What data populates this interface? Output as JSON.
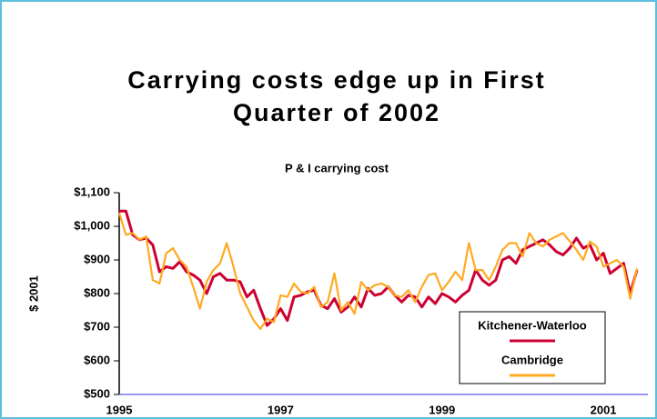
{
  "chart_data": {
    "type": "line",
    "title": "Carrying costs edge up in First Quarter of 2002",
    "subtitle": "P & I carrying cost",
    "y_label": "$ 2001",
    "categories": [
      "1995",
      null,
      null,
      null,
      null,
      null,
      null,
      null,
      null,
      null,
      null,
      null,
      null,
      null,
      null,
      null,
      null,
      null,
      null,
      null,
      null,
      null,
      null,
      null,
      "1997",
      null,
      null,
      null,
      null,
      null,
      null,
      null,
      null,
      null,
      null,
      null,
      null,
      null,
      null,
      null,
      null,
      null,
      null,
      null,
      null,
      null,
      null,
      null,
      "1999",
      null,
      null,
      null,
      null,
      null,
      null,
      null,
      null,
      null,
      null,
      null,
      null,
      null,
      null,
      null,
      null,
      null,
      null,
      null,
      null,
      null,
      null,
      null,
      "2001",
      null,
      null,
      null,
      null,
      null
    ],
    "series": [
      {
        "name": "Kitchener-Waterloo",
        "color": "#cc0033",
        "values": [
          1045,
          1045,
          975,
          960,
          965,
          945,
          865,
          880,
          875,
          895,
          865,
          855,
          840,
          800,
          850,
          860,
          840,
          840,
          835,
          790,
          810,
          755,
          705,
          725,
          755,
          720,
          790,
          795,
          805,
          810,
          765,
          755,
          785,
          745,
          760,
          790,
          760,
          815,
          795,
          800,
          820,
          795,
          775,
          795,
          790,
          760,
          790,
          770,
          800,
          790,
          775,
          795,
          810,
          870,
          840,
          825,
          840,
          900,
          910,
          890,
          930,
          940,
          950,
          960,
          945,
          925,
          915,
          935,
          965,
          935,
          945,
          900,
          920,
          860,
          875,
          890,
          800,
          870
        ]
      },
      {
        "name": "Cambridge",
        "color": "#ffaa22",
        "values": [
          1040,
          975,
          980,
          960,
          970,
          840,
          830,
          920,
          935,
          900,
          880,
          820,
          755,
          835,
          870,
          890,
          950,
          880,
          800,
          760,
          720,
          695,
          725,
          715,
          795,
          790,
          830,
          805,
          800,
          820,
          760,
          775,
          860,
          750,
          775,
          740,
          835,
          810,
          825,
          830,
          820,
          795,
          790,
          810,
          775,
          820,
          855,
          860,
          810,
          835,
          865,
          840,
          950,
          870,
          870,
          840,
          880,
          930,
          950,
          950,
          910,
          980,
          950,
          940,
          960,
          970,
          980,
          955,
          930,
          900,
          955,
          940,
          880,
          890,
          900,
          880,
          785,
          875
        ]
      }
    ],
    "ylim": [
      500,
      1100
    ],
    "yticks": [
      {
        "value": 500,
        "label": "$500"
      },
      {
        "value": 600,
        "label": "$600"
      },
      {
        "value": 700,
        "label": "$700"
      },
      {
        "value": 800,
        "label": "$800"
      },
      {
        "value": 900,
        "label": "$900"
      },
      {
        "value": 1000,
        "label": "$1,000"
      },
      {
        "value": 1100,
        "label": "$1,100"
      }
    ],
    "legend": "lower right"
  }
}
